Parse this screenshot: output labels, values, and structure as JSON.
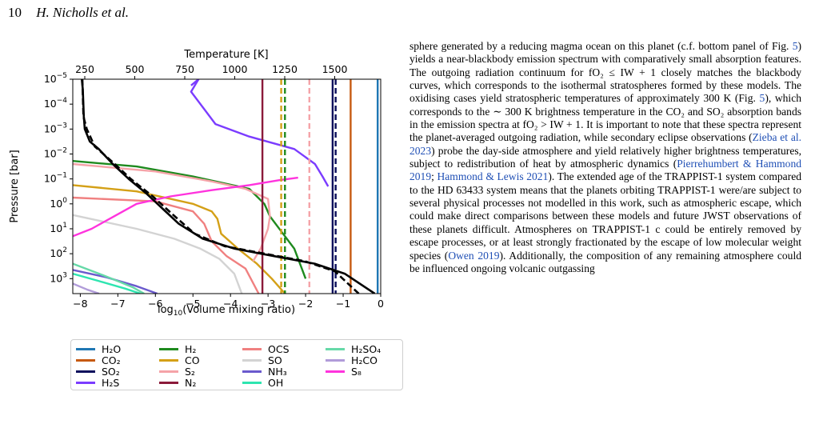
{
  "header": {
    "page_number": "10",
    "authors": "H. Nicholls et al."
  },
  "chart_data": {
    "type": "line",
    "xlabel": "log10(Volume mixing ratio)",
    "ylabel": "Pressure [bar]",
    "top_xlabel": "Temperature [K]",
    "xlim": [
      -8.2,
      0
    ],
    "x_ticks": [
      -8,
      -7,
      -6,
      -5,
      -4,
      -3,
      -2,
      -1,
      0
    ],
    "x_tick_labels": [
      "−8",
      "−7",
      "−6",
      "−5",
      "−4",
      "−3",
      "−2",
      "−1",
      "0"
    ],
    "y_scale": "log",
    "y_inverted": true,
    "ylim_log10": [
      -5,
      3.6
    ],
    "y_ticks_log10": [
      -5,
      -4,
      -3,
      -2,
      -1,
      0,
      1,
      2,
      3
    ],
    "top_axis_range_K": [
      190,
      1730
    ],
    "top_ticks": [
      250,
      500,
      750,
      1000,
      1250,
      1500
    ],
    "top_tick_labels": [
      "250",
      "500",
      "750",
      "1000",
      "1250",
      "1500"
    ],
    "grid": false,
    "series": [
      {
        "name": "H2O",
        "color": "#1f77b4",
        "points": [
          [
            -0.08,
            -5
          ],
          [
            -0.08,
            3.6
          ]
        ]
      },
      {
        "name": "CO2",
        "color": "#c65a11",
        "points": [
          [
            -0.8,
            -5
          ],
          [
            -0.8,
            3.6
          ]
        ]
      },
      {
        "name": "SO2",
        "color": "#0b0f5c",
        "points": [
          [
            -1.28,
            -5
          ],
          [
            -1.28,
            3.6
          ]
        ]
      },
      {
        "name": "H2S",
        "color": "#7b3cff",
        "points": [
          [
            -5.05,
            -4.75
          ],
          [
            -4.85,
            -5
          ],
          [
            -5.05,
            -4.5
          ],
          [
            -4.4,
            -3.2
          ],
          [
            -3.5,
            -2.7
          ],
          [
            -2.3,
            -2.2
          ],
          [
            -1.75,
            -1.6
          ],
          [
            -1.55,
            -1.1
          ],
          [
            -1.4,
            -0.7
          ]
        ]
      },
      {
        "name": "H2",
        "color": "#1e8a1e",
        "points": [
          [
            -8.2,
            -1.72
          ],
          [
            -6.5,
            -1.5
          ],
          [
            -5,
            -1.1
          ],
          [
            -3.5,
            -0.6
          ],
          [
            -3.1,
            0
          ],
          [
            -2.95,
            0.5
          ],
          [
            -2.6,
            1.2
          ],
          [
            -2.3,
            1.8
          ],
          [
            -2.2,
            2.2
          ],
          [
            -2.1,
            2.6
          ],
          [
            -2,
            3
          ]
        ]
      },
      {
        "name": "CO",
        "color": "#d4a017",
        "points": [
          [
            -8.2,
            -0.75
          ],
          [
            -6.5,
            -0.5
          ],
          [
            -5,
            0
          ],
          [
            -4.5,
            0.3
          ],
          [
            -4.35,
            0.6
          ],
          [
            -4.25,
            1.2
          ],
          [
            -3.8,
            1.8
          ],
          [
            -3.3,
            2.4
          ],
          [
            -2.9,
            3
          ],
          [
            -2.55,
            3.6
          ]
        ]
      },
      {
        "name": "S2",
        "color": "#f5a3a8",
        "points": [
          [
            -8.2,
            -1.6
          ],
          [
            -6,
            -1.3
          ],
          [
            -4.5,
            -0.9
          ],
          [
            -3.6,
            -0.6
          ],
          [
            -3.0,
            -0.2
          ],
          [
            -2.95,
            0.5
          ],
          [
            -3.0,
            1
          ],
          [
            -3.2,
            1.8
          ],
          [
            -3.4,
            2.3
          ]
        ]
      },
      {
        "name": "N2",
        "color": "#8b1a3a",
        "points": [
          [
            -3.15,
            -5
          ],
          [
            -3.15,
            3.6
          ]
        ]
      },
      {
        "name": "OCS",
        "color": "#f08080",
        "points": [
          [
            -8.2,
            -0.25
          ],
          [
            -6,
            -0.1
          ],
          [
            -5,
            0.3
          ],
          [
            -4.7,
            0.8
          ],
          [
            -4.5,
            1.5
          ],
          [
            -4.1,
            2.1
          ],
          [
            -3.6,
            2.6
          ],
          [
            -3.25,
            3.6
          ]
        ]
      },
      {
        "name": "SO",
        "color": "#d3d3d3",
        "points": [
          [
            -8.2,
            0.45
          ],
          [
            -6.5,
            1.0
          ],
          [
            -5.5,
            1.4
          ],
          [
            -4.8,
            1.8
          ],
          [
            -4.3,
            2.2
          ],
          [
            -3.9,
            2.8
          ],
          [
            -3.7,
            3.6
          ]
        ]
      },
      {
        "name": "NH3",
        "color": "#6a5acd",
        "points": [
          [
            -8.2,
            2.65
          ],
          [
            -7.3,
            2.95
          ],
          [
            -6.5,
            3.3
          ],
          [
            -5.95,
            3.6
          ]
        ]
      },
      {
        "name": "OH",
        "color": "#2ee5b0",
        "points": [
          [
            -8.2,
            2.8
          ],
          [
            -7.5,
            3.1
          ],
          [
            -6.8,
            3.4
          ],
          [
            -6.4,
            3.6
          ]
        ]
      },
      {
        "name": "H2SO4",
        "color": "#66d9a8",
        "points": [
          [
            -8.2,
            2.4
          ],
          [
            -7.5,
            2.8
          ],
          [
            -7,
            3.1
          ],
          [
            -6.6,
            3.35
          ],
          [
            -6.3,
            3.6
          ]
        ]
      },
      {
        "name": "H2CO",
        "color": "#b19cd9",
        "points": [
          [
            -8.2,
            3.2
          ],
          [
            -7.8,
            3.45
          ],
          [
            -7.5,
            3.6
          ]
        ]
      },
      {
        "name": "S8",
        "color": "#ff33dd",
        "points": [
          [
            -8.2,
            1.3
          ],
          [
            -7.7,
            1.0
          ],
          [
            -7.1,
            0.5
          ],
          [
            -6.5,
            0
          ],
          [
            -5.6,
            -0.3
          ],
          [
            -4.5,
            -0.55
          ],
          [
            -3.5,
            -0.75
          ],
          [
            -2.7,
            -0.95
          ],
          [
            -2.2,
            -1.05
          ]
        ]
      }
    ],
    "dashed_vertical_lines": [
      {
        "x": -2.65,
        "color": "#d4a017"
      },
      {
        "x": -2.55,
        "color": "#1e8a1e"
      },
      {
        "x": -1.9,
        "color": "#f5a3a8"
      },
      {
        "x": -1.2,
        "color": "#0b0f5c"
      }
    ],
    "temperature_profiles": [
      {
        "style": "solid",
        "color": "#000000",
        "points_K": [
          [
            235,
            -5
          ],
          [
            240,
            -4.6
          ],
          [
            245,
            -3.5
          ],
          [
            250,
            -3
          ],
          [
            275,
            -2.5
          ],
          [
            320,
            -2.2
          ],
          [
            390,
            -1.6
          ],
          [
            470,
            -1
          ],
          [
            560,
            -0.4
          ],
          [
            640,
            0.2
          ],
          [
            720,
            0.8
          ],
          [
            840,
            1.4
          ],
          [
            1000,
            1.8
          ],
          [
            1200,
            2.1
          ],
          [
            1400,
            2.4
          ],
          [
            1550,
            2.8
          ],
          [
            1700,
            3.6
          ]
        ]
      },
      {
        "style": "dashed",
        "color": "#000000",
        "points_K": [
          [
            238,
            -5
          ],
          [
            243,
            -3.5
          ],
          [
            260,
            -3
          ],
          [
            300,
            -2.3
          ],
          [
            400,
            -1.6
          ],
          [
            480,
            -1
          ],
          [
            590,
            -0.3
          ],
          [
            700,
            0.5
          ],
          [
            800,
            1.2
          ],
          [
            950,
            1.7
          ],
          [
            1150,
            2
          ],
          [
            1350,
            2.3
          ],
          [
            1500,
            2.7
          ],
          [
            1620,
            3.6
          ]
        ]
      }
    ]
  },
  "legend": [
    {
      "label": "H₂O",
      "color": "#1f77b4"
    },
    {
      "label": "CO₂",
      "color": "#c65a11"
    },
    {
      "label": "SO₂",
      "color": "#0b0f5c"
    },
    {
      "label": "H₂S",
      "color": "#7b3cff"
    },
    {
      "label": "H₂",
      "color": "#1e8a1e"
    },
    {
      "label": "CO",
      "color": "#d4a017"
    },
    {
      "label": "S₂",
      "color": "#f5a3a8"
    },
    {
      "label": "N₂",
      "color": "#8b1a3a"
    },
    {
      "label": "OCS",
      "color": "#f08080"
    },
    {
      "label": "SO",
      "color": "#d3d3d3"
    },
    {
      "label": "NH₃",
      "color": "#6a5acd"
    },
    {
      "label": "OH",
      "color": "#2ee5b0"
    },
    {
      "label": "H₂SO₄",
      "color": "#66d9a8"
    },
    {
      "label": "H₂CO",
      "color": "#b19cd9"
    },
    {
      "label": "S₈",
      "color": "#ff33dd"
    }
  ],
  "body": {
    "paragraph": [
      {
        "t": "sphere generated by a reducing magma ocean on this planet (c.f. bottom panel of Fig. "
      },
      {
        "t": "5",
        "c": "fig-ref"
      },
      {
        "t": ") yields a near-blackbody emission spectrum with comparatively small absorption features. The outgoing radiation continuum for fO₂ ≤ IW + 1 closely matches the blackbody curves, which corresponds to the isothermal stratospheres formed by these models. The oxidising cases yield stratospheric temperatures of approximately 300 K (Fig. "
      },
      {
        "t": "5",
        "c": "fig-ref"
      },
      {
        "t": "), which corresponds to the ∼ 300 K brightness temperature in the CO₂ and SO₂ absorption bands in the emission spectra at fO₂ > IW + 1. It is important to note that these spectra represent the planet-averaged outgoing radiation, while secondary eclipse observations ("
      },
      {
        "t": "Zieba et al. 2023",
        "c": "cite"
      },
      {
        "t": ") probe the day-side atmosphere and yield relatively higher brightness temperatures, subject to redistribution of heat by atmospheric dynamics ("
      },
      {
        "t": "Pierrehumbert & Hammond 2019",
        "c": "cite"
      },
      {
        "t": "; "
      },
      {
        "t": "Hammond & Lewis 2021",
        "c": "cite"
      },
      {
        "t": "). The extended age of the TRAPPIST-1 system compared to the HD 63433 system means that the planets orbiting TRAPPIST-1 were/are subject to several physical processes not modelled in this work, such as atmospheric escape, which could make direct comparisons between these models and future JWST observations of these planets difficult. Atmospheres on TRAPPIST-1 c could be entirely removed by escape processes, or at least strongly fractionated by the escape of low molecular weight species ("
      },
      {
        "t": "Owen 2019",
        "c": "cite"
      },
      {
        "t": "). Additionally, the composition of any remaining atmosphere could be influenced ongoing volcanic outgassing"
      }
    ]
  }
}
